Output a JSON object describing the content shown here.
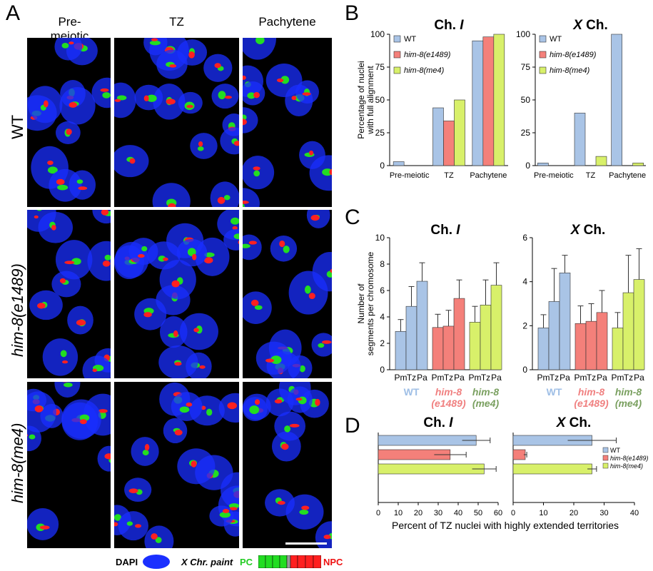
{
  "panel_A": {
    "letter": "A",
    "columns": [
      "Pre-\nmeiotic",
      "TZ",
      "Pachytene"
    ],
    "rows": [
      "WT",
      "him-8(e1489)",
      "him-8(me4)"
    ],
    "legend": {
      "dapi": "DAPI",
      "paint": "X Chr. paint",
      "pc": "PC",
      "npc": "NPC"
    },
    "colors": {
      "dapi": "#1a2fff",
      "pc": "#22dd22",
      "npc": "#ff2020"
    }
  },
  "panel_B": {
    "letter": "B"
  },
  "panel_C": {
    "letter": "C"
  },
  "panel_D": {
    "letter": "D"
  },
  "chart_data": [
    {
      "panel": "B",
      "type": "bar",
      "title": "Ch. I",
      "ylabel": "Percentage of nuclei with full alignment",
      "ylim": [
        0,
        100
      ],
      "yticks": [
        0,
        25,
        50,
        75,
        100
      ],
      "categories": [
        "Pre-meiotic",
        "TZ",
        "Pachytene"
      ],
      "series": [
        {
          "name": "WT",
          "color": "#a9c4e6",
          "values": [
            3,
            44,
            95
          ]
        },
        {
          "name": "him-8(e1489)",
          "color": "#f4807a",
          "values": [
            0,
            34,
            98
          ]
        },
        {
          "name": "him-8(me4)",
          "color": "#d8f06a",
          "values": [
            0,
            50,
            100
          ]
        }
      ],
      "legend": "top-left"
    },
    {
      "panel": "B",
      "type": "bar",
      "title": "X Ch.",
      "ylim": [
        0,
        100
      ],
      "yticks": [
        0,
        25,
        50,
        75,
        100
      ],
      "categories": [
        "Pre-meiotic",
        "TZ",
        "Pachytene"
      ],
      "series": [
        {
          "name": "WT",
          "color": "#a9c4e6",
          "values": [
            2,
            40,
            100
          ]
        },
        {
          "name": "him-8(e1489)",
          "color": "#f4807a",
          "values": [
            0,
            0,
            0
          ]
        },
        {
          "name": "him-8(me4)",
          "color": "#d8f06a",
          "values": [
            0,
            7,
            2
          ]
        }
      ],
      "legend": "top-left"
    },
    {
      "panel": "C",
      "type": "bar",
      "title": "Ch. I",
      "ylabel": "Number of segments per chromosome",
      "ylim": [
        0,
        10
      ],
      "yticks": [
        0,
        2,
        4,
        6,
        8,
        10
      ],
      "tick_labels": [
        "Pm",
        "Tz",
        "Pa"
      ],
      "groups": [
        {
          "name": "WT",
          "color": "#a9c4e6",
          "label_color": "#9fbfe6",
          "values": [
            2.9,
            4.8,
            6.7
          ],
          "errors": [
            0.9,
            1.5,
            1.4
          ]
        },
        {
          "name": "him-8\n(e1489)",
          "color": "#f4807a",
          "label_color": "#f08080",
          "values": [
            3.2,
            3.3,
            5.4
          ],
          "errors": [
            1.0,
            1.2,
            1.4
          ]
        },
        {
          "name": "him-8\n(me4)",
          "color": "#d8f06a",
          "label_color": "#7aa060",
          "values": [
            3.6,
            4.9,
            6.4
          ],
          "errors": [
            1.2,
            1.9,
            1.7
          ]
        }
      ]
    },
    {
      "panel": "C",
      "type": "bar",
      "title": "X Ch.",
      "ylim": [
        0,
        6
      ],
      "yticks": [
        0,
        2,
        4,
        6
      ],
      "tick_labels": [
        "Pm",
        "Tz",
        "Pa"
      ],
      "groups": [
        {
          "name": "WT",
          "color": "#a9c4e6",
          "label_color": "#9fbfe6",
          "values": [
            1.9,
            3.1,
            4.4
          ],
          "errors": [
            0.6,
            1.5,
            0.8
          ]
        },
        {
          "name": "him-8\n(e1489)",
          "color": "#f4807a",
          "label_color": "#f08080",
          "values": [
            2.1,
            2.2,
            2.6
          ],
          "errors": [
            0.8,
            0.8,
            1.0
          ]
        },
        {
          "name": "him-8\n(me4)",
          "color": "#d8f06a",
          "label_color": "#7aa060",
          "values": [
            1.9,
            3.5,
            4.1
          ],
          "errors": [
            0.7,
            1.7,
            1.4
          ]
        }
      ]
    },
    {
      "panel": "D",
      "type": "bar",
      "orientation": "horizontal",
      "title": "Ch. I",
      "xlim": [
        0,
        60
      ],
      "xticks": [
        0,
        10,
        20,
        30,
        40,
        50,
        60
      ],
      "series": [
        {
          "name": "WT",
          "color": "#a9c4e6",
          "value": 49,
          "error": 7
        },
        {
          "name": "him-8(e1489)",
          "color": "#f4807a",
          "value": 36,
          "error": 8
        },
        {
          "name": "him-8(me4)",
          "color": "#d8f06a",
          "value": 53,
          "error": 6
        }
      ]
    },
    {
      "panel": "D",
      "type": "bar",
      "orientation": "horizontal",
      "title": "X Ch.",
      "xlim": [
        0,
        40
      ],
      "xticks": [
        0,
        10,
        20,
        30,
        40
      ],
      "series": [
        {
          "name": "WT",
          "color": "#a9c4e6",
          "value": 26,
          "error": 8
        },
        {
          "name": "him-8(e1489)",
          "color": "#f4807a",
          "value": 4,
          "error": 0.5
        },
        {
          "name": "him-8(me4)",
          "color": "#d8f06a",
          "value": 26,
          "error": 1.5
        }
      ],
      "legend": "top-right"
    }
  ],
  "panel_D_xlabel": "Percent of TZ nuclei with highly extended territories"
}
